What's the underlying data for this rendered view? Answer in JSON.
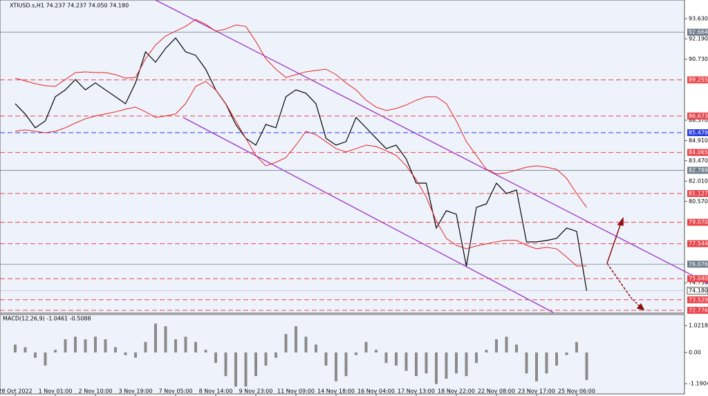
{
  "chart_data": [
    {
      "type": "line",
      "title": "XTIUSD.s,H1  74.237 74.237 74.050 74.180",
      "series": [
        {
          "color": "#000000",
          "values": [
            87.55,
            86.81,
            85.83,
            86.32,
            88.05,
            88.54,
            89.28,
            88.54,
            89.04,
            88.54,
            88.05,
            87.55,
            89.04,
            91.26,
            90.52,
            91.51,
            92.25,
            91.26,
            91.01,
            90.02,
            88.54,
            87.55,
            86.07,
            85.08,
            84.59,
            86.07,
            85.83,
            88.05,
            88.54,
            88.3,
            87.55,
            85.08,
            84.59,
            84.84,
            86.57,
            85.83,
            85.08,
            84.34,
            84.59,
            83.6,
            81.87,
            81.87,
            78.66,
            79.9,
            79.65,
            75.94,
            80.14,
            80.39,
            81.87,
            81.13,
            81.38,
            77.67,
            77.67,
            77.77,
            77.92,
            78.66,
            78.42,
            74.18
          ]
        },
        {
          "color": "#e32222",
          "values": [
            89.38,
            89.18,
            88.98,
            88.84,
            88.79,
            89.28,
            89.78,
            89.83,
            89.78,
            89.78,
            89.63,
            89.38,
            89.43,
            90.76,
            91.75,
            92.39,
            92.74,
            93.08,
            93.58,
            93.23,
            92.74,
            92.89,
            93.18,
            93.08,
            92.0,
            90.76,
            90.02,
            89.43,
            89.63,
            89.83,
            89.93,
            90.02,
            89.63,
            89.04,
            88.54,
            87.8,
            87.31,
            87.06,
            87.21,
            87.46,
            87.8,
            88.05,
            88.05,
            87.56,
            86.32,
            84.84,
            83.85,
            82.86,
            82.52,
            82.61,
            82.81,
            83.01,
            83.11,
            83.01,
            82.86,
            82.22,
            81.13,
            80.14
          ]
        },
        {
          "color": "#e32222",
          "values": [
            85.58,
            85.68,
            85.58,
            85.48,
            85.58,
            85.83,
            86.17,
            86.47,
            86.67,
            86.82,
            86.97,
            87.16,
            87.31,
            86.97,
            86.57,
            86.67,
            86.82,
            87.56,
            88.79,
            89.14,
            88.54,
            87.56,
            86.32,
            85.08,
            83.85,
            83.11,
            83.36,
            83.7,
            84.59,
            85.58,
            85.33,
            84.84,
            84.34,
            84.1,
            84.34,
            84.59,
            84.49,
            84.19,
            83.85,
            83.11,
            82.12,
            80.88,
            79.16,
            77.92,
            77.43,
            77.18,
            77.38,
            77.53,
            77.68,
            77.78,
            77.78,
            77.43,
            77.18,
            77.28,
            77.18,
            76.59,
            75.95,
            75.95
          ]
        }
      ],
      "ylim": [
        72.63,
        94.72
      ],
      "yticks": [
        {
          "value": 93.63,
          "label": "93.630"
        },
        {
          "value": 92.19,
          "label": "92.190"
        },
        {
          "value": 90.73,
          "label": "90.730"
        },
        {
          "value": 86.37,
          "label": "86.370"
        },
        {
          "value": 84.91,
          "label": "84.910"
        },
        {
          "value": 83.47,
          "label": "83.470"
        },
        {
          "value": 82.01,
          "label": "82.010"
        },
        {
          "value": 80.57,
          "label": "80.570"
        },
        {
          "value": 74.75,
          "label": "74.750"
        }
      ],
      "levels": [
        {
          "value": 92.664,
          "color": "#6f7d8a",
          "style": "solid"
        },
        {
          "value": 89.255,
          "color": "#e8434a",
          "style": "dashed"
        },
        {
          "value": 86.673,
          "color": "#e8434a",
          "style": "dashed"
        },
        {
          "value": 85.479,
          "color": "#2a3de0",
          "style": "dashed"
        },
        {
          "value": 84.065,
          "color": "#e8434a",
          "style": "dashed"
        },
        {
          "value": 82.789,
          "color": "#6f7d8a",
          "style": "solid"
        },
        {
          "value": 81.127,
          "color": "#e8434a",
          "style": "dashed"
        },
        {
          "value": {
            "value": 79.07,
            "label": "79.070"
          },
          "color": "#e8434a",
          "style": "dashed"
        },
        {
          "value": 77.544,
          "color": "#e8434a",
          "style": "dashed"
        },
        {
          "value": 76.076,
          "color": "#6f7d8a",
          "style": "solid"
        },
        {
          "value": {
            "value": 75.04,
            "label": "75.040"
          },
          "color": "#e8434a",
          "style": "dashed"
        },
        {
          "value": {
            "value": 74.18,
            "label": "74.180"
          },
          "color": "#ffffff",
          "style": "solid"
        },
        {
          "value": 73.529,
          "color": "#e8434a",
          "style": "dashed"
        },
        {
          "value": 72.776,
          "color": "#e8434a",
          "style": "dashed"
        }
      ]
    },
    {
      "type": "bar",
      "title": "MACD(12,26,9) -1.0461 -0.5088",
      "categories": [
        "28 Oct 2022",
        null,
        null,
        null,
        "1 Nov 01:00",
        null,
        null,
        null,
        "2 Nov 10:00",
        null,
        null,
        null,
        "3 Nov 19:00",
        null,
        null,
        null,
        "7 Nov 05:00",
        null,
        null,
        null,
        "8 Nov 14:00",
        null,
        null,
        null,
        "9 Nov 23:00",
        null,
        null,
        null,
        "11 Nov 09:00",
        null,
        null,
        null,
        "14 Nov 18:00",
        null,
        null,
        null,
        "16 Nov 04:00",
        null,
        null,
        null,
        "17 Nov 13:00",
        null,
        null,
        null,
        "18 Nov 22:00",
        null,
        null,
        null,
        "22 Nov 08:00",
        null,
        null,
        null,
        "23 Nov 17:00",
        null,
        null,
        null,
        "25 Nov 06:00",
        null
      ],
      "values": [
        0.3,
        0.2,
        -0.2,
        -0.5,
        0.1,
        0.5,
        0.6,
        0.5,
        0.6,
        0.5,
        0.2,
        -0.1,
        -0.2,
        0.4,
        1.1,
        1.0,
        0.5,
        0.6,
        0.4,
        0.1,
        -0.4,
        -0.9,
        -1.3,
        -1.3,
        -0.9,
        -0.5,
        -0.2,
        0.7,
        1.0,
        0.6,
        0.3,
        -0.5,
        -1.1,
        -0.9,
        -0.1,
        0.4,
        0.1,
        -0.4,
        -0.5,
        -0.7,
        -0.9,
        -0.8,
        -1.2,
        -1.0,
        -0.8,
        -0.9,
        -0.4,
        0.1,
        0.5,
        0.6,
        0.3,
        -0.8,
        -1.1,
        -0.8,
        -0.5,
        -0.1,
        0.4,
        -1.05
      ],
      "color": "#8a8a8a",
      "ylim": [
        -1.526,
        1.368
      ],
      "yticks": [
        1.0218,
        {
          "value": 0,
          "label": "0.00"
        },
        -1.1904
      ]
    }
  ]
}
